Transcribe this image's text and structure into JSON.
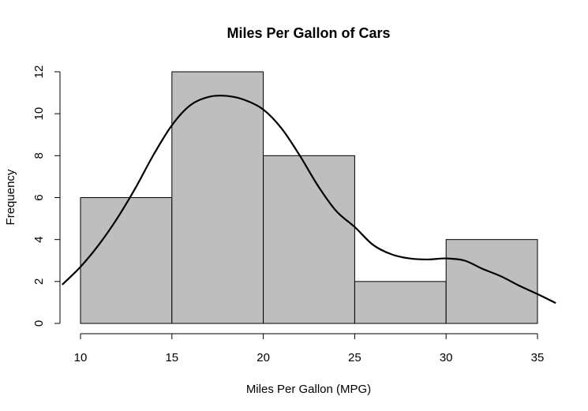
{
  "chart_data": {
    "type": "bar",
    "title": "Miles Per Gallon of Cars",
    "xlabel": "Miles Per Gallon (MPG)",
    "ylabel": "Frequency",
    "bins": [
      {
        "from": 10,
        "to": 15,
        "count": 6
      },
      {
        "from": 15,
        "to": 20,
        "count": 12
      },
      {
        "from": 20,
        "to": 25,
        "count": 8
      },
      {
        "from": 25,
        "to": 30,
        "count": 2
      },
      {
        "from": 30,
        "to": 35,
        "count": 4
      }
    ],
    "x_ticks": [
      "10",
      "15",
      "20",
      "25",
      "30",
      "35"
    ],
    "y_ticks": [
      "0",
      "2",
      "4",
      "6",
      "8",
      "10",
      "12"
    ],
    "xlim": [
      9,
      36
    ],
    "ylim": [
      0,
      12
    ],
    "density_curve": [
      [
        9.0,
        1.85
      ],
      [
        10.0,
        2.7
      ],
      [
        11.0,
        3.75
      ],
      [
        12.0,
        5.0
      ],
      [
        13.0,
        6.45
      ],
      [
        14.0,
        8.05
      ],
      [
        15.0,
        9.45
      ],
      [
        16.0,
        10.4
      ],
      [
        17.0,
        10.8
      ],
      [
        18.0,
        10.85
      ],
      [
        19.0,
        10.65
      ],
      [
        20.0,
        10.2
      ],
      [
        21.0,
        9.3
      ],
      [
        22.0,
        8.0
      ],
      [
        23.0,
        6.55
      ],
      [
        24.0,
        5.35
      ],
      [
        25.0,
        4.6
      ],
      [
        26.0,
        3.75
      ],
      [
        27.0,
        3.3
      ],
      [
        28.0,
        3.1
      ],
      [
        29.0,
        3.05
      ],
      [
        30.0,
        3.1
      ],
      [
        31.0,
        3.0
      ],
      [
        32.0,
        2.6
      ],
      [
        33.0,
        2.25
      ],
      [
        34.0,
        1.8
      ],
      [
        35.0,
        1.4
      ],
      [
        36.0,
        0.97
      ]
    ],
    "grid": false,
    "colors": {
      "bar_fill": "#bebebe",
      "bar_stroke": "#000000",
      "curve": "#000000"
    }
  }
}
